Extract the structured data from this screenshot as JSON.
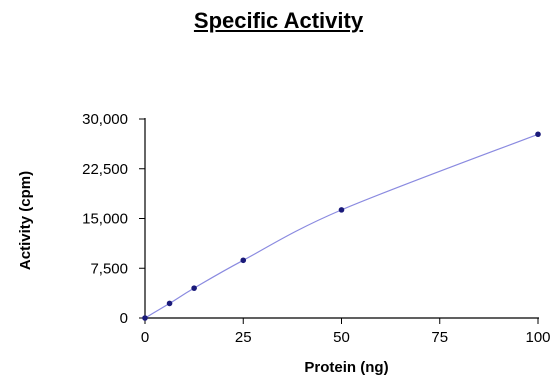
{
  "chart_data": {
    "type": "line",
    "title": "Specific Activity",
    "xlabel": "Protein (ng)",
    "ylabel": "Activity (cpm)",
    "xlim": [
      0,
      100
    ],
    "ylim": [
      0,
      30000
    ],
    "x_ticks": [
      0,
      25,
      50,
      75,
      100
    ],
    "y_ticks": [
      0,
      7500,
      15000,
      22500,
      30000
    ],
    "x_tick_labels": [
      "0",
      "25",
      "50",
      "75",
      "100"
    ],
    "y_tick_labels": [
      "0",
      "7,500",
      "15,000",
      "22,500",
      "30,000"
    ],
    "grid": false,
    "series": [
      {
        "x": [
          0,
          6.25,
          12.5,
          25,
          50,
          100
        ],
        "y": [
          0,
          2200,
          4500,
          8700,
          16300,
          27700
        ],
        "color": "#1a1a7a",
        "line_color": "#8a8ae0",
        "marker": "dot"
      }
    ]
  }
}
